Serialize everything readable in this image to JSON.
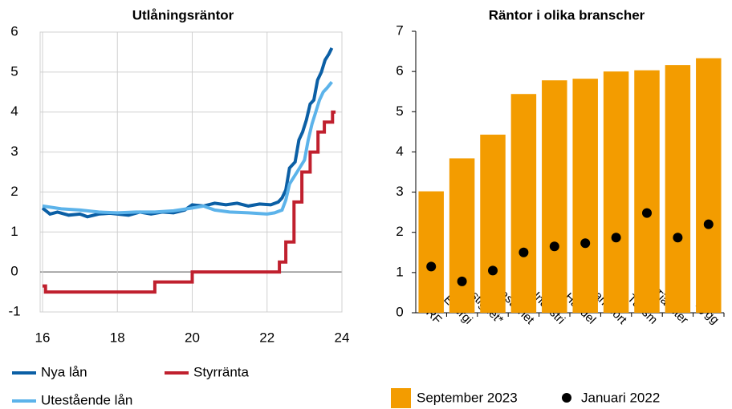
{
  "chart_data": [
    {
      "type": "line",
      "title": "Utlåningsräntor",
      "xlim": [
        16,
        24
      ],
      "xticks": [
        16,
        18,
        20,
        22,
        24
      ],
      "ylim": [
        -1,
        6
      ],
      "yticks": [
        -1,
        0,
        1,
        2,
        3,
        4,
        5,
        6
      ],
      "grid": true,
      "series": [
        {
          "name": "Nya lån",
          "color": "#0b5fa5",
          "x": [
            16,
            16.2,
            16.4,
            16.7,
            17,
            17.2,
            17.5,
            17.8,
            18,
            18.3,
            18.6,
            18.9,
            19.2,
            19.5,
            19.8,
            20,
            20.3,
            20.6,
            20.9,
            21.2,
            21.5,
            21.8,
            22.1,
            22.3,
            22.4,
            22.5,
            22.6,
            22.75,
            22.85,
            22.95,
            23.05,
            23.15,
            23.25,
            23.35,
            23.45,
            23.55,
            23.65,
            23.73
          ],
          "values": [
            1.6,
            1.45,
            1.5,
            1.42,
            1.45,
            1.38,
            1.45,
            1.47,
            1.45,
            1.42,
            1.5,
            1.45,
            1.5,
            1.48,
            1.55,
            1.68,
            1.65,
            1.72,
            1.68,
            1.72,
            1.65,
            1.7,
            1.68,
            1.75,
            1.85,
            2.05,
            2.6,
            2.75,
            3.3,
            3.5,
            3.8,
            4.2,
            4.3,
            4.8,
            5.0,
            5.3,
            5.45,
            5.6
          ]
        },
        {
          "name": "Styrränta",
          "color": "#c0202e",
          "x": [
            16,
            16.08,
            16.08,
            19,
            19,
            20,
            20,
            22.33,
            22.33,
            22.5,
            22.5,
            22.72,
            22.72,
            22.93,
            22.93,
            23.15,
            23.15,
            23.36,
            23.36,
            23.53,
            23.53,
            23.75,
            23.75,
            23.83
          ],
          "values": [
            -0.35,
            -0.35,
            -0.5,
            -0.5,
            -0.25,
            -0.25,
            0,
            0,
            0.25,
            0.25,
            0.75,
            0.75,
            1.75,
            1.75,
            2.5,
            2.5,
            3,
            3,
            3.5,
            3.5,
            3.75,
            3.75,
            4,
            4
          ]
        },
        {
          "name": "Utestående lån",
          "color": "#5cb3ea",
          "x": [
            16,
            16.5,
            17,
            17.5,
            18,
            18.5,
            19,
            19.5,
            20,
            20.3,
            20.6,
            21,
            21.5,
            22,
            22.2,
            22.4,
            22.5,
            22.6,
            22.8,
            23,
            23.1,
            23.2,
            23.3,
            23.4,
            23.5,
            23.6,
            23.73
          ],
          "values": [
            1.65,
            1.58,
            1.55,
            1.5,
            1.48,
            1.5,
            1.5,
            1.53,
            1.6,
            1.65,
            1.55,
            1.5,
            1.48,
            1.45,
            1.48,
            1.55,
            1.8,
            2.2,
            2.5,
            2.8,
            3.3,
            3.7,
            4.0,
            4.3,
            4.5,
            4.6,
            4.75
          ]
        }
      ]
    },
    {
      "type": "bar",
      "title": "Räntor i olika branscher",
      "categories": [
        "BRF",
        "Energi",
        "Fastighet*",
        "Fastighet",
        "Industri",
        "Handel",
        "Transport",
        "Turism",
        "Tjänster",
        "Bygg"
      ],
      "ylim": [
        0,
        7
      ],
      "yticks": [
        0,
        1,
        2,
        3,
        4,
        5,
        6,
        7
      ],
      "series": [
        {
          "name": "September 2023",
          "color": "#f39c00",
          "values": [
            3.02,
            3.84,
            4.43,
            5.44,
            5.78,
            5.82,
            6.0,
            6.03,
            6.16,
            6.33
          ]
        },
        {
          "name": "Januari 2022",
          "color": "#000000",
          "type": "scatter",
          "values": [
            1.15,
            0.78,
            1.05,
            1.5,
            1.65,
            1.73,
            1.87,
            2.48,
            1.87,
            2.2
          ]
        }
      ]
    }
  ]
}
